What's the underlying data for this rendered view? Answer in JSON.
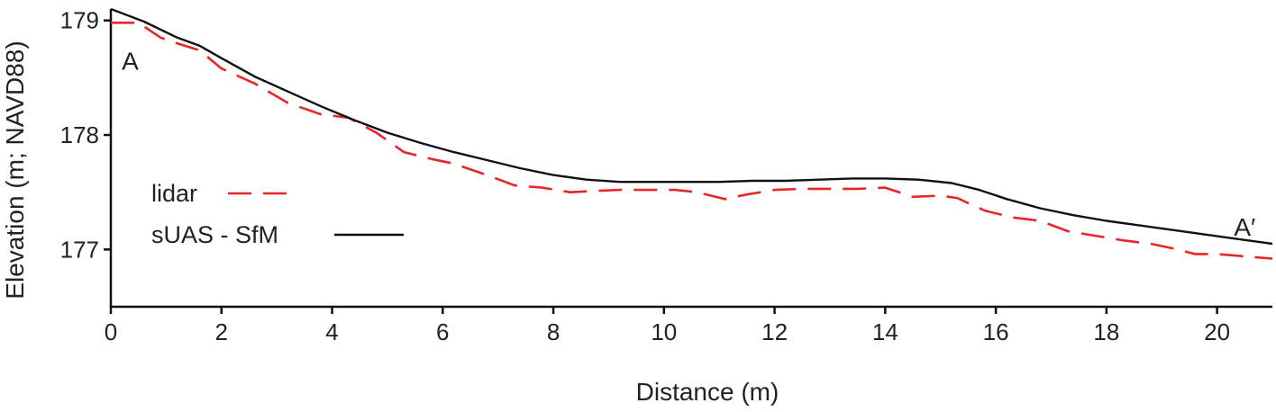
{
  "chart_data": {
    "type": "line",
    "title": "",
    "xlabel": "Distance (m)",
    "ylabel": "Elevation (m; NAVD88)",
    "xlim": [
      0,
      21
    ],
    "ylim": [
      176.5,
      179.1
    ],
    "x_ticks": [
      0,
      2,
      4,
      6,
      8,
      10,
      12,
      14,
      16,
      18,
      20
    ],
    "y_ticks": [
      177,
      178,
      179
    ],
    "x_tick_labels": [
      "0",
      "2",
      "4",
      "6",
      "8",
      "10",
      "12",
      "14",
      "16",
      "18",
      "20"
    ],
    "y_tick_labels": [
      "177",
      "178",
      "179"
    ],
    "grid": false,
    "legend_position": "left",
    "annotations": [
      {
        "text": "A",
        "x": 0.35,
        "y": 178.65
      },
      {
        "text": "A′",
        "x": 20.5,
        "y": 177.2
      }
    ],
    "series": [
      {
        "name": "lidar",
        "color": "#e8262a",
        "style": "dashed",
        "x": [
          0,
          0.5,
          0.9,
          1.2,
          1.6,
          2.0,
          2.6,
          3.2,
          3.8,
          4.3,
          4.8,
          5.3,
          5.8,
          6.2,
          6.8,
          7.3,
          7.8,
          8.3,
          8.7,
          9.2,
          9.7,
          10.2,
          10.6,
          11.1,
          11.5,
          12.0,
          12.5,
          13.0,
          13.5,
          14.0,
          14.5,
          15.0,
          15.3,
          15.8,
          16.3,
          16.8,
          17.3,
          17.8,
          18.3,
          18.8,
          19.2,
          19.6,
          20.0,
          20.5,
          21.0
        ],
        "y": [
          178.98,
          178.98,
          178.85,
          178.8,
          178.74,
          178.58,
          178.45,
          178.28,
          178.18,
          178.15,
          178.02,
          177.85,
          177.79,
          177.75,
          177.65,
          177.56,
          177.54,
          177.5,
          177.51,
          177.52,
          177.52,
          177.52,
          177.5,
          177.44,
          177.48,
          177.52,
          177.53,
          177.53,
          177.53,
          177.54,
          177.46,
          177.47,
          177.45,
          177.34,
          177.28,
          177.25,
          177.16,
          177.12,
          177.08,
          177.05,
          177.01,
          176.96,
          176.96,
          176.94,
          176.92
        ]
      },
      {
        "name": "sUAS - SfM",
        "color": "#111111",
        "style": "solid",
        "x": [
          0,
          0.6,
          1.2,
          1.6,
          2.0,
          2.6,
          3.2,
          3.8,
          4.4,
          5.0,
          5.6,
          6.2,
          6.8,
          7.4,
          8.0,
          8.6,
          9.2,
          9.8,
          10.4,
          11.0,
          11.6,
          12.2,
          12.8,
          13.4,
          14.0,
          14.6,
          15.2,
          15.7,
          16.2,
          16.8,
          17.4,
          18.0,
          18.6,
          19.2,
          19.8,
          20.4,
          21.0
        ],
        "y": [
          179.1,
          178.99,
          178.85,
          178.78,
          178.67,
          178.51,
          178.38,
          178.25,
          178.13,
          178.02,
          177.93,
          177.85,
          177.78,
          177.71,
          177.65,
          177.61,
          177.59,
          177.59,
          177.59,
          177.59,
          177.6,
          177.6,
          177.61,
          177.62,
          177.62,
          177.61,
          177.58,
          177.52,
          177.44,
          177.36,
          177.3,
          177.25,
          177.21,
          177.17,
          177.13,
          177.09,
          177.05
        ]
      }
    ]
  }
}
